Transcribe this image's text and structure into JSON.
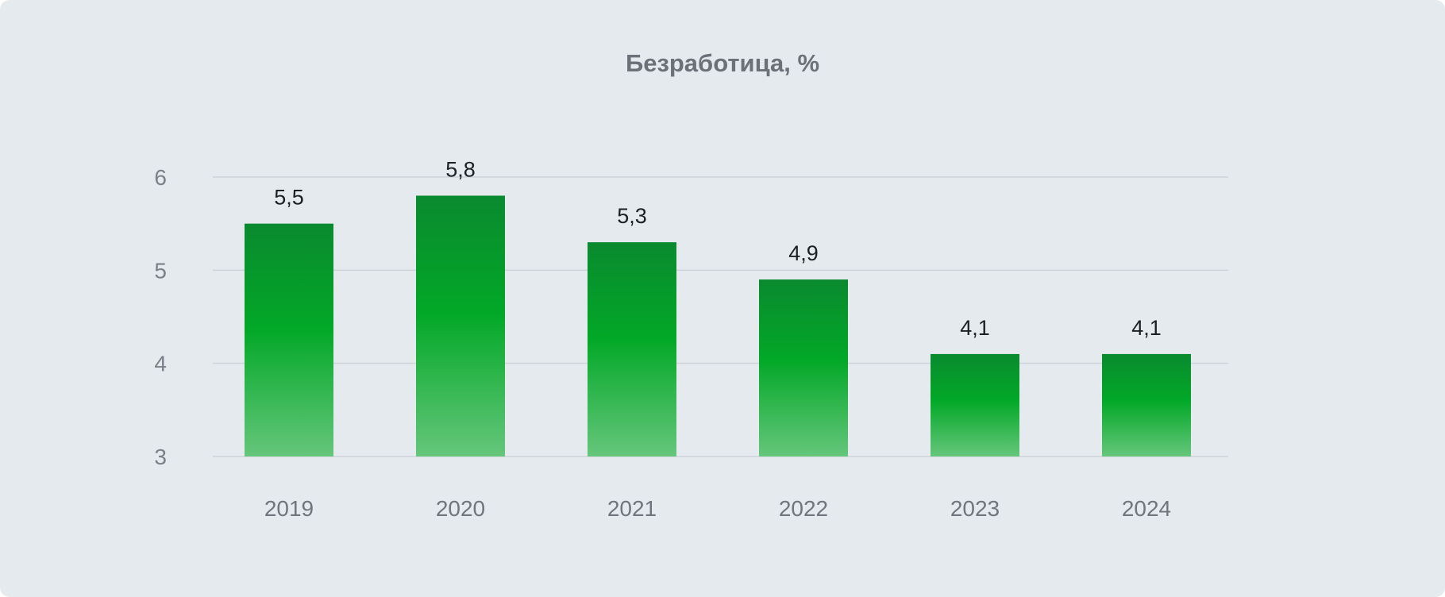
{
  "chart_data": {
    "type": "bar",
    "title": "Безработица, %",
    "categories": [
      "2019",
      "2020",
      "2021",
      "2022",
      "2023",
      "2024"
    ],
    "values": [
      5.5,
      5.8,
      5.3,
      4.9,
      4.1,
      4.1
    ],
    "value_labels": [
      "5,5",
      "5,8",
      "5,3",
      "4,9",
      "4,1",
      "4,1"
    ],
    "yticks": [
      "6",
      "5",
      "4",
      "3"
    ],
    "ylim": [
      3,
      6
    ],
    "xlabel": "",
    "ylabel": "",
    "grid": true,
    "legend": "none",
    "colors": {
      "bar_top": "#0a8a2f",
      "bar_mid": "#02a827",
      "bar_bottom": "#65c67b",
      "grid": "#cdd3d9",
      "background": "#e5eaee"
    }
  }
}
